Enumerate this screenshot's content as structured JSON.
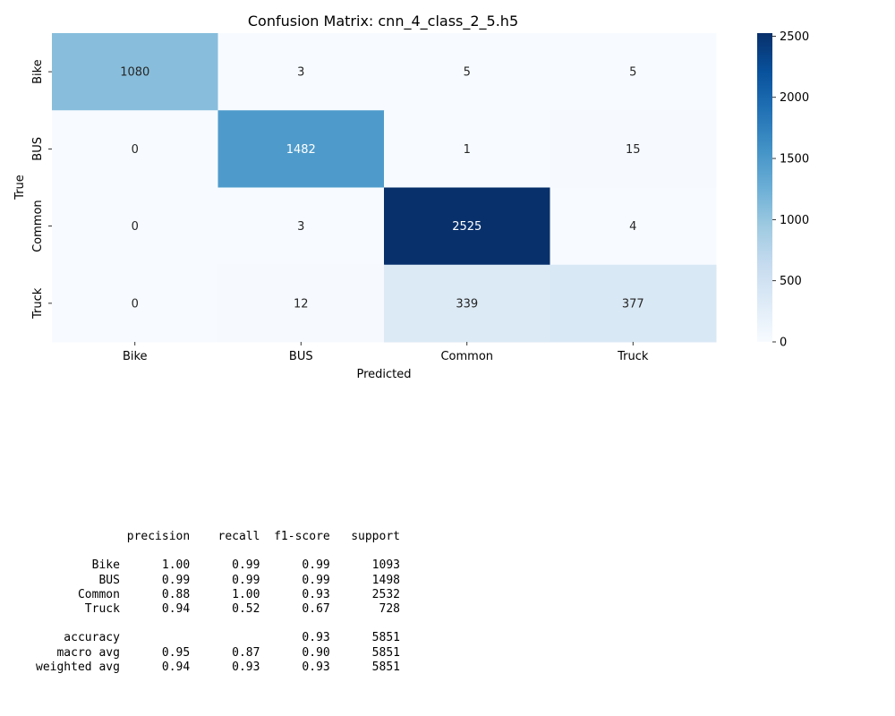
{
  "chart_data": {
    "type": "heatmap",
    "title": "Confusion Matrix: cnn_4_class_2_5.h5",
    "xlabel": "Predicted",
    "ylabel": "True",
    "x_categories": [
      "Bike",
      "BUS",
      "Common",
      "Truck"
    ],
    "y_categories": [
      "Bike",
      "BUS",
      "Common",
      "Truck"
    ],
    "values": [
      [
        1080,
        3,
        5,
        5
      ],
      [
        0,
        1482,
        1,
        15
      ],
      [
        0,
        3,
        2525,
        4
      ],
      [
        0,
        12,
        339,
        377
      ]
    ],
    "colormap": "Blues",
    "colorbar": {
      "min": 0,
      "max": 2525,
      "ticks": [
        0,
        500,
        1000,
        1500,
        2000,
        2500
      ]
    }
  },
  "report": {
    "header": [
      "precision",
      "recall",
      "f1-score",
      "support"
    ],
    "rows": [
      {
        "label": "Bike",
        "precision": "1.00",
        "recall": "0.99",
        "f1": "0.99",
        "support": "1093"
      },
      {
        "label": "BUS",
        "precision": "0.99",
        "recall": "0.99",
        "f1": "0.99",
        "support": "1498"
      },
      {
        "label": "Common",
        "precision": "0.88",
        "recall": "1.00",
        "f1": "0.93",
        "support": "2532"
      },
      {
        "label": "Truck",
        "precision": "0.94",
        "recall": "0.52",
        "f1": "0.67",
        "support": "728"
      }
    ],
    "summary": [
      {
        "label": "accuracy",
        "precision": "",
        "recall": "",
        "f1": "0.93",
        "support": "5851"
      },
      {
        "label": "macro avg",
        "precision": "0.95",
        "recall": "0.87",
        "f1": "0.90",
        "support": "5851"
      },
      {
        "label": "weighted avg",
        "precision": "0.94",
        "recall": "0.93",
        "f1": "0.93",
        "support": "5851"
      }
    ]
  }
}
